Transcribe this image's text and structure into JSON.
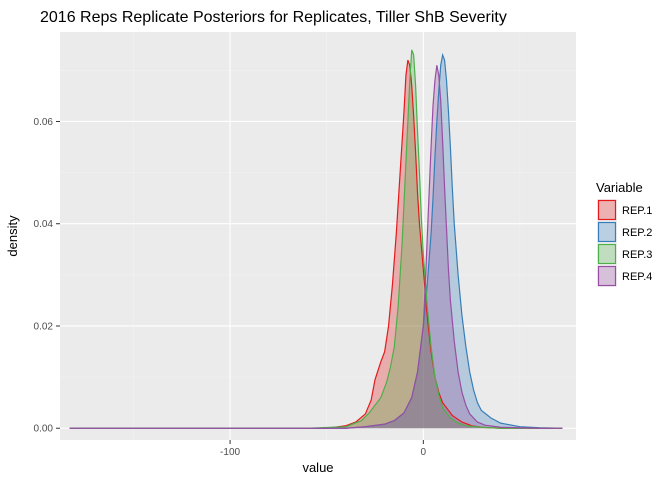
{
  "chart_data": {
    "type": "area",
    "title": "2016 Reps Replicate Posteriors for Replicates, Tiller ShB Severity",
    "xlabel": "value",
    "ylabel": "density",
    "xlim": [
      -188,
      79
    ],
    "ylim": [
      -0.0023,
      0.0775
    ],
    "x_ticks": [
      -100,
      0
    ],
    "x_tick_labels": [
      "-100",
      "0"
    ],
    "y_ticks": [
      0.0,
      0.02,
      0.04,
      0.06
    ],
    "y_tick_labels": [
      "0.00",
      "0.02",
      "0.04",
      "0.06"
    ],
    "grid": true,
    "legend": {
      "title": "Variable",
      "position": "right"
    },
    "series": [
      {
        "name": "REP.1",
        "color": "#E41A1C",
        "x": [
          -183,
          -120,
          -80,
          -60,
          -50,
          -40,
          -35,
          -30,
          -27,
          -25,
          -22,
          -20,
          -18,
          -16,
          -14,
          -12,
          -10,
          -9,
          -8,
          -7,
          -6,
          -5,
          -4,
          -3,
          -2,
          0,
          2,
          4,
          6,
          8,
          10,
          15,
          20,
          25,
          30,
          40,
          50,
          60,
          72
        ],
        "y": [
          0,
          0,
          0,
          0,
          0,
          0.0005,
          0.0012,
          0.0028,
          0.0055,
          0.0095,
          0.013,
          0.015,
          0.02,
          0.028,
          0.038,
          0.05,
          0.062,
          0.069,
          0.072,
          0.071,
          0.067,
          0.061,
          0.054,
          0.046,
          0.04,
          0.031,
          0.022,
          0.015,
          0.01,
          0.007,
          0.005,
          0.0025,
          0.0012,
          0.0005,
          0.0002,
          0,
          0,
          0,
          0
        ]
      },
      {
        "name": "REP.2",
        "color": "#377EB8",
        "x": [
          -183,
          -80,
          -60,
          -40,
          -30,
          -20,
          -15,
          -10,
          -6,
          -3,
          0,
          2,
          4,
          5,
          6,
          7,
          8,
          9,
          10,
          11,
          12,
          13,
          14,
          15,
          16,
          18,
          20,
          22,
          24,
          26,
          28,
          30,
          35,
          40,
          50,
          60,
          72
        ],
        "y": [
          0,
          0,
          0,
          0,
          0.0003,
          0.0008,
          0.0015,
          0.003,
          0.006,
          0.011,
          0.02,
          0.028,
          0.038,
          0.045,
          0.053,
          0.06,
          0.066,
          0.071,
          0.073,
          0.072,
          0.068,
          0.062,
          0.055,
          0.047,
          0.04,
          0.03,
          0.022,
          0.016,
          0.011,
          0.0075,
          0.005,
          0.0035,
          0.002,
          0.001,
          0.0003,
          0.0001,
          0
        ]
      },
      {
        "name": "REP.3",
        "color": "#4DAF4A",
        "x": [
          -183,
          -100,
          -60,
          -40,
          -32,
          -28,
          -25,
          -22,
          -19,
          -17,
          -15,
          -13,
          -11,
          -9,
          -8,
          -7,
          -6,
          -5,
          -4,
          -3,
          -2,
          -1,
          0,
          2,
          4,
          6,
          8,
          10,
          14,
          18,
          22,
          30,
          40,
          55,
          72
        ],
        "y": [
          0,
          0,
          0,
          0.0003,
          0.0015,
          0.003,
          0.0045,
          0.006,
          0.009,
          0.012,
          0.016,
          0.024,
          0.036,
          0.052,
          0.06,
          0.068,
          0.074,
          0.073,
          0.067,
          0.058,
          0.05,
          0.041,
          0.034,
          0.024,
          0.016,
          0.01,
          0.0065,
          0.004,
          0.002,
          0.001,
          0.0005,
          0.0002,
          0,
          0,
          0
        ]
      },
      {
        "name": "REP.4",
        "color": "#984EA3",
        "x": [
          -183,
          -80,
          -40,
          -30,
          -20,
          -15,
          -10,
          -6,
          -3,
          0,
          1,
          2,
          3,
          4,
          5,
          6,
          7,
          8,
          9,
          10,
          11,
          12,
          13,
          14,
          16,
          18,
          20,
          22,
          24,
          28,
          32,
          40,
          50,
          60,
          72
        ],
        "y": [
          0,
          0,
          0,
          0.0003,
          0.0008,
          0.0015,
          0.003,
          0.006,
          0.011,
          0.02,
          0.028,
          0.037,
          0.046,
          0.055,
          0.063,
          0.068,
          0.071,
          0.069,
          0.064,
          0.056,
          0.047,
          0.039,
          0.031,
          0.025,
          0.017,
          0.011,
          0.007,
          0.0045,
          0.0028,
          0.0012,
          0.0006,
          0.0002,
          0.0001,
          0,
          0
        ]
      }
    ]
  }
}
